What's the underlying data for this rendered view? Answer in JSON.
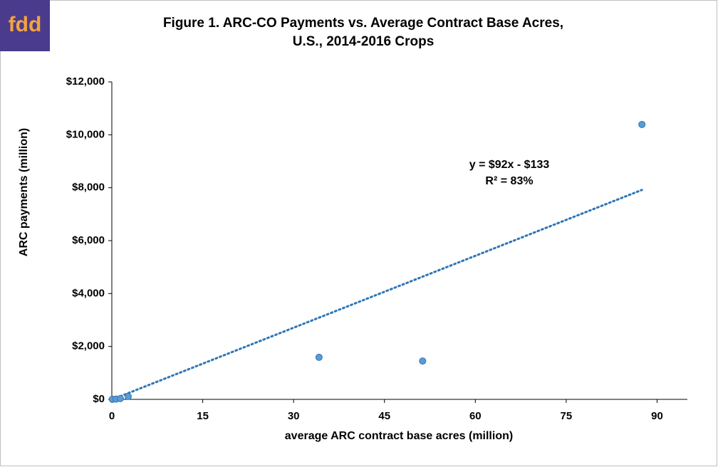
{
  "logo": "fdd",
  "chart_data": {
    "type": "scatter",
    "title": "Figure 1. ARC-CO Payments vs. Average Contract Base Acres,",
    "subtitle": "U.S., 2014-2016 Crops",
    "x_label": "average ARC contract base acres (million)",
    "y_label": "ARC payments (million)",
    "annotations": [
      "y = $92x - $133",
      "R² = 83%"
    ],
    "trendline": {
      "slope": 92,
      "intercept": -133,
      "color": "#2e75b6"
    },
    "series": [
      {
        "name": "ARC-CO",
        "color": "#5b9bd5",
        "x": [
          0.1,
          0.7,
          1.4,
          2.7,
          34.2,
          51.3,
          87.5
        ],
        "values": [
          5,
          10,
          30,
          110,
          1590,
          1450,
          10390
        ]
      }
    ],
    "xlim": [
      0,
      95
    ],
    "xticks": [
      0,
      15,
      30,
      45,
      60,
      75,
      90
    ],
    "ylim": [
      0,
      12000
    ],
    "yticks": [
      {
        "value": 0,
        "label": "$0"
      },
      {
        "value": 2000,
        "label": "$2,000"
      },
      {
        "value": 4000,
        "label": "$4,000"
      },
      {
        "value": 6000,
        "label": "$6,000"
      },
      {
        "value": 8000,
        "label": "$8,000"
      },
      {
        "value": 10000,
        "label": "$10,000"
      },
      {
        "value": 12000,
        "label": "$12,000"
      }
    ],
    "grid": false
  }
}
